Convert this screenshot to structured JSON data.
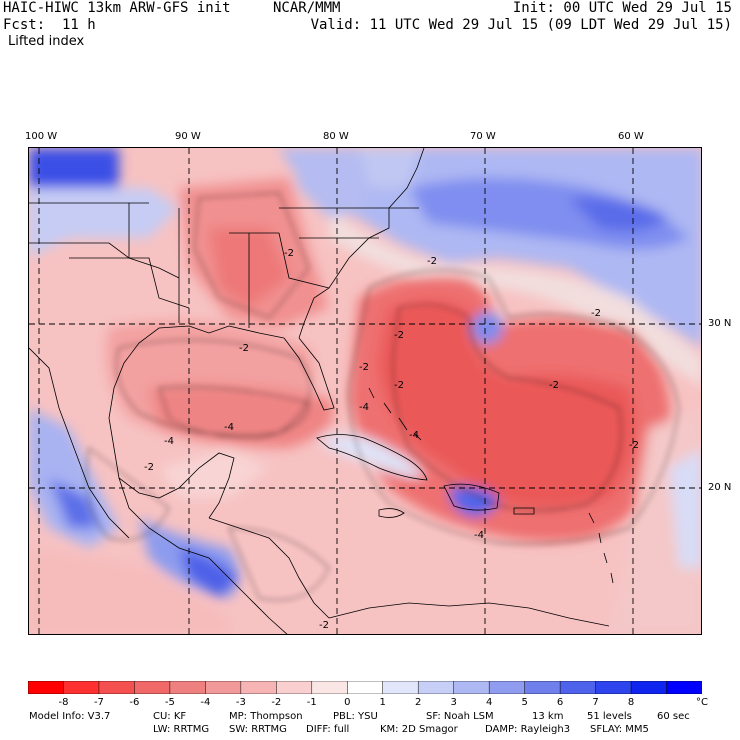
{
  "header": {
    "model": "HAIC-HIWC 13km ARW-GFS init",
    "org": "NCAR/MMM",
    "init": "Init: 00 UTC Wed 29 Jul 15",
    "fcst_label": "Fcst:",
    "fcst_value": "11 h",
    "valid": "Valid: 11 UTC Wed 29 Jul 15 (09 LDT Wed 29 Jul 15)",
    "field": "Lifted index"
  },
  "map": {
    "lon_labels": [
      "100 W",
      "90 W",
      "80 W",
      "70 W",
      "60 W"
    ],
    "lat_labels": [
      "30 N",
      "20 N"
    ],
    "contour_labels": [
      "-2",
      "-2",
      "-2",
      "-2",
      "-2",
      "-2",
      "-4",
      "-4",
      "-4",
      "-4",
      "-2",
      "-2",
      "-2",
      "-4",
      "-2",
      "-2"
    ]
  },
  "colorbar": {
    "labels": [
      "-8",
      "-7",
      "-6",
      "-5",
      "-4",
      "-3",
      "-2",
      "-1",
      "0",
      "1",
      "2",
      "3",
      "4",
      "5",
      "6",
      "7",
      "8"
    ],
    "unit": "°C",
    "colors": [
      "#ff0000",
      "#ff3030",
      "#f45050",
      "#f06868",
      "#ee8080",
      "#f29a9a",
      "#f6b4b4",
      "#f9cfcf",
      "#fbe6e6",
      "#ffffff",
      "#e2e6fb",
      "#c8cff7",
      "#aeb8f3",
      "#8f9cf0",
      "#6f80ec",
      "#4f62eb",
      "#2e44ec",
      "#1024f0",
      "#0000ff"
    ]
  },
  "footer": {
    "line1": {
      "model_info": "Model Info: V3.7",
      "cu": "CU: KF",
      "mp": "MP: Thompson",
      "pbl": "PBL: YSU",
      "sf": "SF: Noah LSM",
      "res": "13 km",
      "levels": "51 levels",
      "step": "60 sec"
    },
    "line2": {
      "lw": "LW: RRTMG",
      "sw": "SW: RRTMG",
      "diff": "DIFF: full",
      "km": "KM: 2D Smagor",
      "damp": "DAMP: Rayleigh3",
      "sflay": "SFLAY: MM5"
    }
  }
}
